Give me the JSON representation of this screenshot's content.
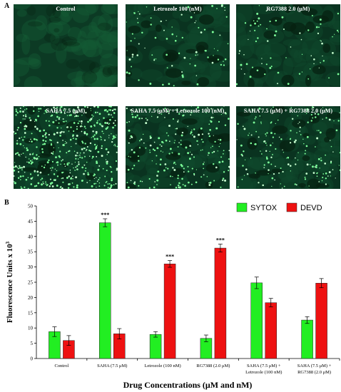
{
  "panel_a": {
    "letter": "A",
    "images": [
      {
        "title": "Control",
        "density": 0,
        "color": "#0c3a24"
      },
      {
        "title": "Letrozole 100 (nM)",
        "density": 90,
        "color": "#0a3320"
      },
      {
        "title": "RG7388 2.0 (μM)",
        "density": 80,
        "color": "#0a3320"
      },
      {
        "title": "SAHA 7.5 (μM)",
        "density": 520,
        "color": "#0a3320"
      },
      {
        "title": "SAHA 7.5 (μM) + Letrozole 100 (nM)",
        "density": 240,
        "color": "#0a3320"
      },
      {
        "title": "SAHA 7.5 (μM) + RG7388 2.0 (μM)",
        "density": 180,
        "color": "#0a3320"
      }
    ]
  },
  "chart_data": {
    "panel_letter": "B",
    "type": "bar",
    "title": "",
    "xlabel": "Drug Concentrations (μM and nM)",
    "ylabel": "Fluorescence Units x 10",
    "ylabel_superscript": "3",
    "ylim": [
      0,
      50
    ],
    "yticks": [
      0,
      5,
      10,
      15,
      20,
      25,
      30,
      35,
      40,
      45,
      50
    ],
    "grid": false,
    "legend_position": "top-right",
    "categories": [
      [
        "Control"
      ],
      [
        "SAHA (7.5 μM)"
      ],
      [
        "Letrozole (100 nM)"
      ],
      [
        "RG7388 (2.0 μM)"
      ],
      [
        "SAHA (7.5 μM) +",
        "Letrozole (100 nM)"
      ],
      [
        "SAHA (7.5 μM) +",
        "RG7388 (2.0 μM)"
      ]
    ],
    "series": [
      {
        "name": "SYTOX",
        "color": "#22ee22",
        "values": [
          8.8,
          44.5,
          7.9,
          6.6,
          24.8,
          12.6
        ],
        "errors": [
          1.6,
          1.3,
          0.9,
          1.1,
          1.9,
          1.1
        ]
      },
      {
        "name": "DEVD",
        "color": "#ee1111",
        "values": [
          5.9,
          8.1,
          31.0,
          36.2,
          18.3,
          24.7
        ],
        "errors": [
          1.6,
          1.7,
          1.1,
          1.3,
          1.4,
          1.5
        ]
      }
    ],
    "annotations": [
      {
        "series": 0,
        "category": 1,
        "text": "***"
      },
      {
        "series": 1,
        "category": 2,
        "text": "***"
      },
      {
        "series": 1,
        "category": 3,
        "text": "***"
      }
    ]
  }
}
